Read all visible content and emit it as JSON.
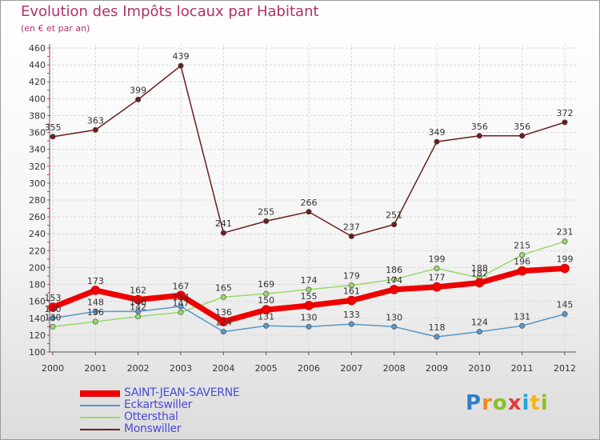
{
  "title": "Evolution des Impôts locaux par Habitant",
  "subtitle": "(en € et par an)",
  "logo": [
    "P",
    "r",
    "o",
    "x",
    "i",
    "t",
    "i"
  ],
  "chart_data": {
    "type": "line",
    "title": "Evolution des Impôts locaux par Habitant",
    "subtitle": "(en € et par an)",
    "xlabel": "",
    "ylabel": "",
    "x": [
      "2000",
      "2001",
      "2002",
      "2003",
      "2004",
      "2005",
      "2006",
      "2007",
      "2008",
      "2009",
      "2010",
      "2011",
      "2012"
    ],
    "ylim": [
      100,
      460
    ],
    "yticks": [
      100,
      120,
      140,
      160,
      180,
      200,
      220,
      240,
      260,
      280,
      300,
      320,
      340,
      360,
      380,
      400,
      420,
      440,
      460
    ],
    "grid": true,
    "legend_position": "bottom-left",
    "series": [
      {
        "name": "Monswiller",
        "color": "#6b1e1e",
        "values": [
          355,
          363,
          399,
          439,
          241,
          255,
          266,
          237,
          251,
          349,
          356,
          356,
          372
        ]
      },
      {
        "name": "Ottersthal",
        "color": "#99d86a",
        "values": [
          130,
          136,
          142,
          147,
          165,
          169,
          174,
          179,
          186,
          199,
          188,
          215,
          231
        ]
      },
      {
        "name": "Eckartswiller",
        "color": "#5a96c8",
        "values": [
          140,
          148,
          148,
          154,
          124,
          131,
          130,
          133,
          130,
          118,
          124,
          131,
          145
        ]
      },
      {
        "name": "SAINT-JEAN-SAVERNE",
        "color": "#ee0000",
        "values": [
          153,
          173,
          162,
          167,
          136,
          150,
          155,
          161,
          174,
          177,
          182,
          196,
          199
        ]
      }
    ],
    "legend": [
      "SAINT-JEAN-SAVERNE",
      "Eckartswiller",
      "Ottersthal",
      "Monswiller"
    ]
  }
}
